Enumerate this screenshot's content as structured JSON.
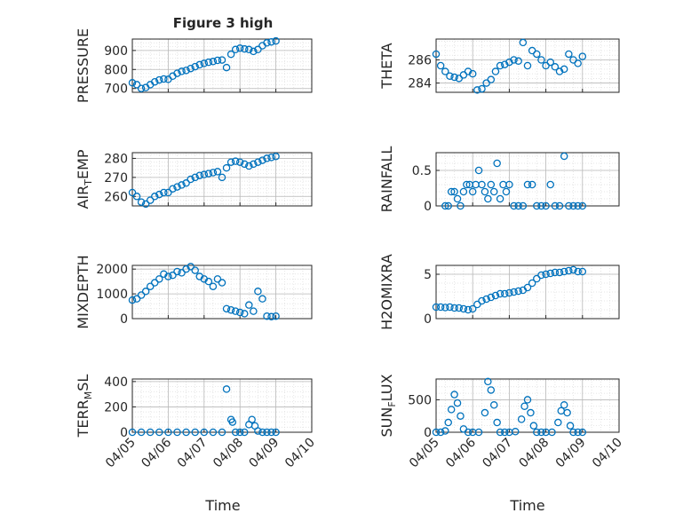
{
  "figure": {
    "title": "Figure 3 high",
    "xlabel": "Time"
  },
  "colors": {
    "marker": "#0072BD",
    "axis": "#262626",
    "grid": "#b8b8b8",
    "minor_grid": "#dcdcdc"
  },
  "chart_data": [
    {
      "type": "scatter",
      "ylabel": "PRESSURE",
      "ylim": [
        680,
        960
      ],
      "yticks": [
        700,
        800,
        900
      ],
      "xlim": [
        "04/05",
        "04/10"
      ],
      "grid": true,
      "x": [
        "04/05 00:00",
        "04/05 03:00",
        "04/05 06:00",
        "04/05 09:00",
        "04/05 12:00",
        "04/05 15:00",
        "04/05 18:00",
        "04/05 21:00",
        "04/06 00:00",
        "04/06 03:00",
        "04/06 06:00",
        "04/06 09:00",
        "04/06 12:00",
        "04/06 15:00",
        "04/06 18:00",
        "04/06 21:00",
        "04/07 00:00",
        "04/07 03:00",
        "04/07 06:00",
        "04/07 09:00",
        "04/07 12:00",
        "04/07 15:00",
        "04/07 18:00",
        "04/07 21:00",
        "04/08 00:00",
        "04/08 03:00",
        "04/08 06:00",
        "04/08 09:00",
        "04/08 12:00",
        "04/08 15:00",
        "04/08 18:00",
        "04/08 21:00",
        "04/09 00:00"
      ],
      "y": [
        730,
        720,
        700,
        705,
        720,
        735,
        745,
        750,
        748,
        765,
        780,
        790,
        795,
        805,
        815,
        825,
        832,
        838,
        842,
        848,
        850,
        810,
        880,
        905,
        912,
        908,
        905,
        895,
        905,
        925,
        940,
        945,
        950
      ]
    },
    {
      "type": "scatter",
      "ylabel": "THETA",
      "ylim": [
        283.2,
        287.8
      ],
      "yticks": [
        284,
        286
      ],
      "xlim": [
        "04/05",
        "04/10"
      ],
      "grid": true,
      "x": [
        "04/05 00:00",
        "04/05 03:00",
        "04/05 06:00",
        "04/05 09:00",
        "04/05 12:00",
        "04/05 15:00",
        "04/05 18:00",
        "04/05 21:00",
        "04/06 00:00",
        "04/06 03:00",
        "04/06 06:00",
        "04/06 09:00",
        "04/06 12:00",
        "04/06 15:00",
        "04/06 18:00",
        "04/06 21:00",
        "04/07 00:00",
        "04/07 03:00",
        "04/07 06:00",
        "04/07 09:00",
        "04/07 12:00",
        "04/07 15:00",
        "04/07 18:00",
        "04/07 21:00",
        "04/08 00:00",
        "04/08 03:00",
        "04/08 06:00",
        "04/08 09:00",
        "04/08 12:00",
        "04/08 15:00",
        "04/08 18:00",
        "04/08 21:00",
        "04/09 00:00"
      ],
      "y": [
        286.5,
        285.5,
        285.0,
        284.6,
        284.5,
        284.4,
        284.7,
        285.0,
        284.8,
        283.4,
        283.5,
        284.0,
        284.3,
        285.0,
        285.5,
        285.6,
        285.8,
        286.0,
        285.9,
        287.5,
        285.5,
        286.8,
        286.5,
        286.0,
        285.5,
        285.8,
        285.4,
        285.0,
        285.2,
        286.5,
        286.0,
        285.7,
        286.3
      ]
    },
    {
      "type": "scatter",
      "ylabel": "AIR_TEMP",
      "ylim": [
        255,
        283
      ],
      "yticks": [
        260,
        270,
        280
      ],
      "xlim": [
        "04/05",
        "04/10"
      ],
      "grid": true,
      "x": [
        "04/05 00:00",
        "04/05 03:00",
        "04/05 06:00",
        "04/05 09:00",
        "04/05 12:00",
        "04/05 15:00",
        "04/05 18:00",
        "04/05 21:00",
        "04/06 00:00",
        "04/06 03:00",
        "04/06 06:00",
        "04/06 09:00",
        "04/06 12:00",
        "04/06 15:00",
        "04/06 18:00",
        "04/06 21:00",
        "04/07 00:00",
        "04/07 03:00",
        "04/07 06:00",
        "04/07 09:00",
        "04/07 12:00",
        "04/07 15:00",
        "04/07 18:00",
        "04/07 21:00",
        "04/08 00:00",
        "04/08 03:00",
        "04/08 06:00",
        "04/08 09:00",
        "04/08 12:00",
        "04/08 15:00",
        "04/08 18:00",
        "04/08 21:00",
        "04/09 00:00"
      ],
      "y": [
        262,
        260,
        257,
        256,
        258,
        260,
        261,
        262,
        262,
        264,
        265,
        266,
        267,
        269,
        270,
        271,
        271.5,
        272,
        272.5,
        273,
        270,
        275,
        278,
        278.5,
        278,
        277,
        276,
        277,
        278,
        279,
        280,
        280.5,
        281
      ]
    },
    {
      "type": "scatter",
      "ylabel": "RAINFALL",
      "ylim": [
        0,
        0.75
      ],
      "yticks": [
        0,
        0.5
      ],
      "xlim": [
        "04/05",
        "04/10"
      ],
      "grid": true,
      "x": [
        "04/05 06:00",
        "04/05 08:00",
        "04/05 10:00",
        "04/05 12:00",
        "04/05 14:00",
        "04/05 16:00",
        "04/05 18:00",
        "04/05 20:00",
        "04/05 22:00",
        "04/06 00:00",
        "04/06 02:00",
        "04/06 04:00",
        "04/06 06:00",
        "04/06 08:00",
        "04/06 10:00",
        "04/06 12:00",
        "04/06 14:00",
        "04/06 16:00",
        "04/06 18:00",
        "04/06 20:00",
        "04/06 22:00",
        "04/07 00:00",
        "04/07 03:00",
        "04/07 06:00",
        "04/07 09:00",
        "04/07 12:00",
        "04/07 15:00",
        "04/07 18:00",
        "04/07 21:00",
        "04/08 00:00",
        "04/08 03:00",
        "04/08 06:00",
        "04/08 09:00",
        "04/08 12:00",
        "04/08 15:00",
        "04/08 18:00",
        "04/08 21:00",
        "04/09 00:00"
      ],
      "y": [
        0,
        0,
        0.2,
        0.2,
        0.1,
        0,
        0.2,
        0.3,
        0.3,
        0.2,
        0.3,
        0.5,
        0.3,
        0.2,
        0.1,
        0.3,
        0.2,
        0.6,
        0.1,
        0.3,
        0.2,
        0.3,
        0,
        0,
        0,
        0.3,
        0.3,
        0,
        0,
        0,
        0.3,
        0,
        0,
        0.7,
        0,
        0,
        0,
        0
      ]
    },
    {
      "type": "scatter",
      "ylabel": "MIXDEPTH",
      "ylim": [
        0,
        2150
      ],
      "yticks": [
        0,
        1000,
        2000
      ],
      "xlim": [
        "04/05",
        "04/10"
      ],
      "grid": true,
      "x": [
        "04/05 00:00",
        "04/05 03:00",
        "04/05 06:00",
        "04/05 09:00",
        "04/05 12:00",
        "04/05 15:00",
        "04/05 18:00",
        "04/05 21:00",
        "04/06 00:00",
        "04/06 03:00",
        "04/06 06:00",
        "04/06 09:00",
        "04/06 12:00",
        "04/06 15:00",
        "04/06 18:00",
        "04/06 21:00",
        "04/07 00:00",
        "04/07 03:00",
        "04/07 06:00",
        "04/07 09:00",
        "04/07 12:00",
        "04/07 15:00",
        "04/07 18:00",
        "04/07 21:00",
        "04/08 00:00",
        "04/08 03:00",
        "04/08 06:00",
        "04/08 09:00",
        "04/08 12:00",
        "04/08 15:00",
        "04/08 18:00",
        "04/08 21:00",
        "04/09 00:00"
      ],
      "y": [
        750,
        800,
        950,
        1100,
        1300,
        1450,
        1600,
        1800,
        1700,
        1750,
        1900,
        1850,
        2000,
        2100,
        1950,
        1700,
        1600,
        1500,
        1300,
        1600,
        1450,
        400,
        350,
        300,
        250,
        200,
        550,
        300,
        1100,
        800,
        100,
        80,
        100
      ]
    },
    {
      "type": "scatter",
      "ylabel": "H2OMIXRA",
      "ylim": [
        0,
        6
      ],
      "yticks": [
        0,
        5
      ],
      "xlim": [
        "04/05",
        "04/10"
      ],
      "grid": true,
      "x": [
        "04/05 00:00",
        "04/05 03:00",
        "04/05 06:00",
        "04/05 09:00",
        "04/05 12:00",
        "04/05 15:00",
        "04/05 18:00",
        "04/05 21:00",
        "04/06 00:00",
        "04/06 03:00",
        "04/06 06:00",
        "04/06 09:00",
        "04/06 12:00",
        "04/06 15:00",
        "04/06 18:00",
        "04/06 21:00",
        "04/07 00:00",
        "04/07 03:00",
        "04/07 06:00",
        "04/07 09:00",
        "04/07 12:00",
        "04/07 15:00",
        "04/07 18:00",
        "04/07 21:00",
        "04/08 00:00",
        "04/08 03:00",
        "04/08 06:00",
        "04/08 09:00",
        "04/08 12:00",
        "04/08 15:00",
        "04/08 18:00",
        "04/08 21:00",
        "04/09 00:00"
      ],
      "y": [
        1.3,
        1.3,
        1.25,
        1.3,
        1.2,
        1.2,
        1.1,
        1.0,
        1.1,
        1.6,
        2.0,
        2.2,
        2.4,
        2.6,
        2.8,
        2.8,
        2.9,
        3.0,
        3.1,
        3.2,
        3.5,
        4.0,
        4.5,
        4.9,
        5.0,
        5.1,
        5.2,
        5.2,
        5.3,
        5.4,
        5.5,
        5.3,
        5.3
      ]
    },
    {
      "type": "scatter",
      "ylabel": "TERR_MSL",
      "ylim": [
        0,
        420
      ],
      "yticks": [
        0,
        200,
        400
      ],
      "xlim": [
        "04/05",
        "04/10"
      ],
      "grid": true,
      "x": [
        "04/05 00:00",
        "04/05 06:00",
        "04/05 12:00",
        "04/05 18:00",
        "04/06 00:00",
        "04/06 06:00",
        "04/06 12:00",
        "04/06 18:00",
        "04/07 00:00",
        "04/07 06:00",
        "04/07 12:00",
        "04/07 15:00",
        "04/07 18:00",
        "04/07 19:00",
        "04/07 21:00",
        "04/08 00:00",
        "04/08 03:00",
        "04/08 06:00",
        "04/08 08:00",
        "04/08 10:00",
        "04/08 12:00",
        "04/08 15:00",
        "04/08 18:00",
        "04/08 21:00",
        "04/09 00:00"
      ],
      "y": [
        0,
        0,
        0,
        0,
        0,
        0,
        0,
        0,
        0,
        0,
        0,
        340,
        100,
        80,
        0,
        0,
        0,
        60,
        100,
        50,
        10,
        0,
        0,
        0,
        0
      ]
    },
    {
      "type": "scatter",
      "ylabel": "SUN_FLUX",
      "ylim": [
        0,
        820
      ],
      "yticks": [
        0,
        500
      ],
      "xlim": [
        "04/05",
        "04/10"
      ],
      "grid": true,
      "x": [
        "04/05 00:00",
        "04/05 03:00",
        "04/05 06:00",
        "04/05 08:00",
        "04/05 10:00",
        "04/05 12:00",
        "04/05 14:00",
        "04/05 16:00",
        "04/05 18:00",
        "04/05 21:00",
        "04/06 00:00",
        "04/06 04:00",
        "04/06 08:00",
        "04/06 10:00",
        "04/06 12:00",
        "04/06 14:00",
        "04/06 16:00",
        "04/06 18:00",
        "04/06 21:00",
        "04/07 00:00",
        "04/07 04:00",
        "04/07 08:00",
        "04/07 10:00",
        "04/07 12:00",
        "04/07 14:00",
        "04/07 16:00",
        "04/07 18:00",
        "04/07 21:00",
        "04/08 00:00",
        "04/08 04:00",
        "04/08 08:00",
        "04/08 10:00",
        "04/08 12:00",
        "04/08 14:00",
        "04/08 16:00",
        "04/08 18:00",
        "04/08 21:00",
        "04/09 00:00"
      ],
      "y": [
        0,
        0,
        20,
        150,
        350,
        580,
        450,
        250,
        50,
        0,
        0,
        0,
        300,
        780,
        650,
        420,
        150,
        0,
        0,
        0,
        10,
        200,
        400,
        500,
        300,
        100,
        0,
        0,
        0,
        0,
        150,
        330,
        420,
        300,
        100,
        0,
        0,
        0
      ]
    }
  ]
}
